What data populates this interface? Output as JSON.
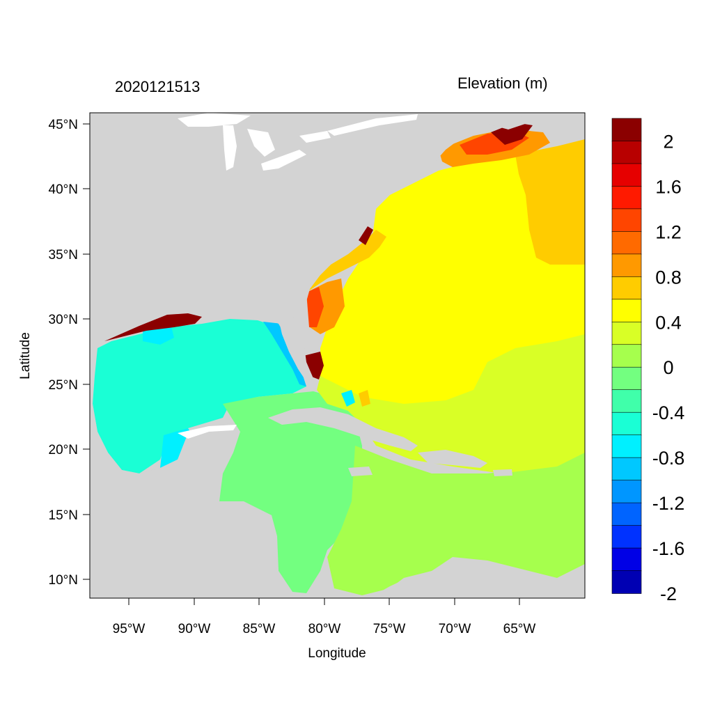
{
  "header": {
    "date": "2020121513",
    "variable": "Elevation (m)"
  },
  "axes": {
    "xlabel": "Longitude",
    "ylabel": "Latitude",
    "x_ticks": [
      "95°W",
      "90°W",
      "85°W",
      "80°W",
      "75°W",
      "70°W",
      "65°W"
    ],
    "y_ticks": [
      "45°N",
      "40°N",
      "35°N",
      "30°N",
      "25°N",
      "20°N",
      "15°N",
      "10°N"
    ],
    "lon_range": [
      -98,
      -60.3
    ],
    "lat_range": [
      8.5,
      45.8
    ]
  },
  "colorbar": {
    "labels": [
      "2",
      "1.6",
      "1.2",
      "0.8",
      "0.4",
      "0",
      "-0.4",
      "-0.8",
      "-1.2",
      "-1.6",
      "-2"
    ],
    "colors": [
      "#8b0000",
      "#b80000",
      "#e60000",
      "#ff1a00",
      "#ff4500",
      "#ff6a00",
      "#ff9900",
      "#ffcc00",
      "#ffff00",
      "#d9ff26",
      "#a6ff4d",
      "#73ff80",
      "#40ffaa",
      "#1affd5",
      "#00f0ff",
      "#00c8ff",
      "#0096ff",
      "#0064ff",
      "#0032ff",
      "#0000e6",
      "#0000b3"
    ]
  },
  "colors": {
    "land": "#d3d3d3",
    "water_bg": "#ffffff"
  }
}
